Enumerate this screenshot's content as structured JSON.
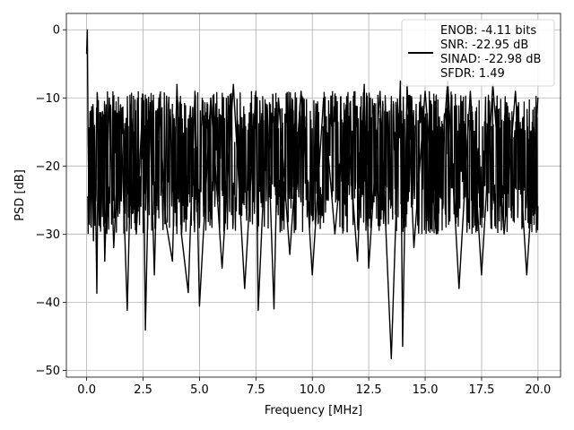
{
  "chart_data": {
    "type": "line",
    "title": "",
    "xlabel": "Frequency [MHz]",
    "ylabel": "PSD [dB]",
    "xlim": [
      -0.9,
      21.0
    ],
    "ylim": [
      -51,
      2.4
    ],
    "x_ticks": [
      0.0,
      2.5,
      5.0,
      7.5,
      10.0,
      12.5,
      15.0,
      17.5,
      20.0
    ],
    "x_tick_labels": [
      "0.0",
      "2.5",
      "5.0",
      "7.5",
      "10.0",
      "12.5",
      "15.0",
      "17.5",
      "20.0"
    ],
    "y_ticks": [
      0,
      -10,
      -20,
      -30,
      -40,
      -50
    ],
    "y_tick_labels": [
      "0",
      "−10",
      "−20",
      "−30",
      "−40",
      "−50"
    ],
    "grid": true,
    "legend_position": "top-right",
    "legend_entries": [
      "ENOB: -4.11 bits",
      "SNR: -22.95 dB",
      "SINAD: -22.98 dB",
      "SFDR: 1.49"
    ],
    "series_color": "#000000",
    "x": [
      0.0,
      0.03,
      0.06,
      0.1,
      0.15,
      0.2,
      0.25,
      0.3,
      0.35,
      0.4,
      0.45,
      0.5,
      0.6,
      0.7,
      0.8,
      1.0,
      1.2,
      1.5,
      1.8,
      2.0,
      2.2,
      2.5,
      2.6,
      2.8,
      3.0,
      3.2,
      3.5,
      3.8,
      4.0,
      4.2,
      4.5,
      4.8,
      5.0,
      5.5,
      6.0,
      6.5,
      7.0,
      7.5,
      7.6,
      8.0,
      8.3,
      8.5,
      9.0,
      9.5,
      10.0,
      10.5,
      11.0,
      11.5,
      12.0,
      12.3,
      12.5,
      13.0,
      13.5,
      13.9,
      14.0,
      14.2,
      14.5,
      15.0,
      15.5,
      16.0,
      16.5,
      17.0,
      17.5,
      18.0,
      18.5,
      19.0,
      19.5,
      20.0
    ],
    "y": [
      -3.5,
      0.0,
      -16.0,
      -25.0,
      -12.0,
      -29.0,
      -18.0,
      -31.0,
      -14.0,
      -26.0,
      -38.7,
      -20.0,
      -29.0,
      -12.0,
      -34.0,
      -10.0,
      -32.0,
      -11.0,
      -41.2,
      -13.0,
      -30.0,
      -9.5,
      -44.1,
      -12.0,
      -36.0,
      -10.0,
      -28.0,
      -34.0,
      -8.0,
      -30.0,
      -38.6,
      -9.0,
      -40.6,
      -10.0,
      -35.0,
      -8.0,
      -38.0,
      -9.0,
      -41.2,
      -11.0,
      -41.0,
      -10.0,
      -33.0,
      -9.0,
      -36.0,
      -10.0,
      -30.0,
      -11.0,
      -34.0,
      -8.0,
      -35.0,
      -9.0,
      -48.3,
      -7.5,
      -46.5,
      -8.0,
      -32.0,
      -9.0,
      -30.0,
      -7.5,
      -38.0,
      -9.0,
      -36.0,
      -8.0,
      -30.0,
      -9.0,
      -36.0,
      -10.0
    ]
  }
}
